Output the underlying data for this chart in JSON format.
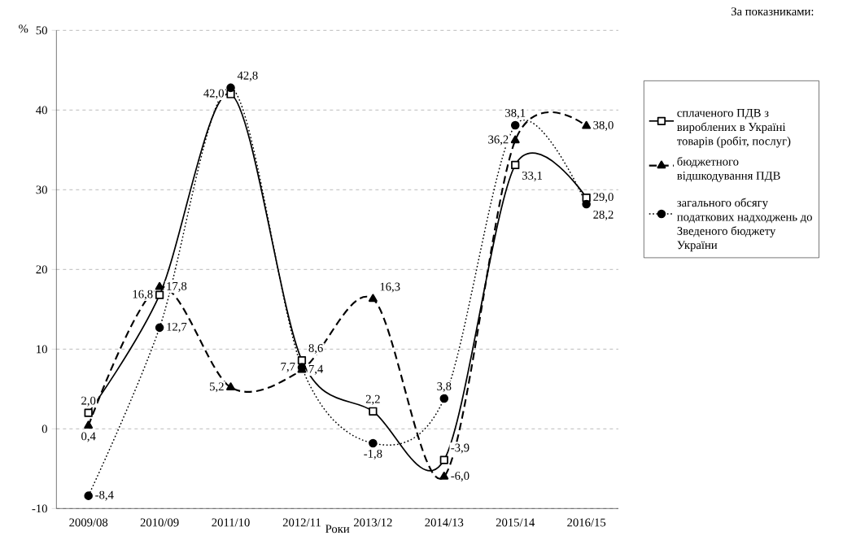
{
  "chart_data": {
    "type": "line",
    "ylabel": "%",
    "xlabel": "Роки",
    "legend_title": "За показниками:",
    "categories": [
      "2009/08",
      "2010/09",
      "2011/10",
      "2012/11",
      "2013/12",
      "2014/13",
      "2015/14",
      "2016/15"
    ],
    "series": [
      {
        "name": "сплаченого ПДВ з вироблених в Україні товарів (робіт, послуг)",
        "color": "#000000",
        "marker": "square",
        "line_style": "solid",
        "values": [
          2.0,
          16.8,
          42.0,
          8.6,
          2.2,
          -3.9,
          33.1,
          29.0
        ],
        "value_labels": [
          "2,0",
          "16,8",
          "42,0",
          "8,6",
          "2,2",
          "-3,9",
          "33,1",
          "29,0"
        ]
      },
      {
        "name": "бюджетного відшкодування ПДВ",
        "color": "#000000",
        "marker": "triangle",
        "line_style": "dashed",
        "values": [
          0.4,
          17.8,
          5.2,
          7.4,
          16.3,
          -6.0,
          36.2,
          38.0
        ],
        "value_labels": [
          "0,4",
          "17,8",
          "5,2",
          "7,4",
          "16,3",
          "-6,0",
          "36,2",
          "38,0"
        ]
      },
      {
        "name": "загального обсягу податкових надходжень до Зведеного бюджету України",
        "color": "#000000",
        "marker": "circle",
        "line_style": "dotted",
        "values": [
          -8.4,
          12.7,
          42.8,
          7.7,
          -1.8,
          3.8,
          38.1,
          28.2
        ],
        "value_labels": [
          "-8,4",
          "12,7",
          "42,8",
          "7,7",
          "-1,8",
          "3,8",
          "38,1",
          "28,2"
        ]
      }
    ],
    "ylim": [
      -10,
      50
    ],
    "yticks": [
      -10,
      0,
      10,
      20,
      30,
      40,
      50
    ],
    "grid": "y",
    "legend": "right"
  }
}
